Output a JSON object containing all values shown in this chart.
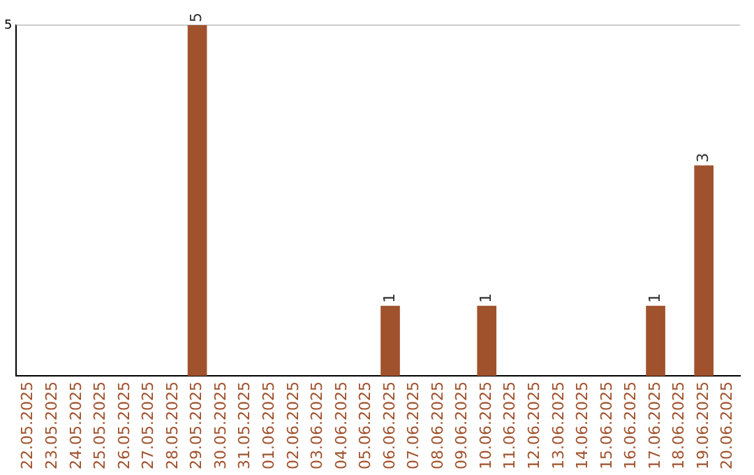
{
  "chart_data": {
    "type": "bar",
    "categories": [
      "22.05.2025",
      "23.05.2025",
      "24.05.2025",
      "25.05.2025",
      "26.05.2025",
      "27.05.2025",
      "28.05.2025",
      "29.05.2025",
      "30.05.2025",
      "31.05.2025",
      "01.06.2025",
      "02.06.2025",
      "03.06.2025",
      "04.06.2025",
      "05.06.2025",
      "06.06.2025",
      "07.06.2025",
      "08.06.2025",
      "09.06.2025",
      "10.06.2025",
      "11.06.2025",
      "12.06.2025",
      "13.06.2025",
      "14.06.2025",
      "15.06.2025",
      "16.06.2025",
      "17.06.2025",
      "18.06.2025",
      "19.06.2025",
      "20.06.2025"
    ],
    "values": [
      0,
      0,
      0,
      0,
      0,
      0,
      0,
      5,
      0,
      0,
      0,
      0,
      0,
      0,
      0,
      1,
      0,
      0,
      0,
      1,
      0,
      0,
      0,
      0,
      0,
      0,
      1,
      0,
      3,
      0
    ],
    "value_labels": [
      null,
      null,
      null,
      null,
      null,
      null,
      null,
      "5",
      null,
      null,
      null,
      null,
      null,
      null,
      null,
      "1",
      null,
      null,
      null,
      "1",
      null,
      null,
      null,
      null,
      null,
      null,
      "1",
      null,
      "3",
      null
    ],
    "color": "#a0522d",
    "ylim": [
      0,
      5
    ],
    "yticks": [
      5
    ],
    "ref_lines": [
      {
        "axis": "y",
        "value": 5,
        "color": "#cccccc"
      }
    ],
    "legend": false
  }
}
